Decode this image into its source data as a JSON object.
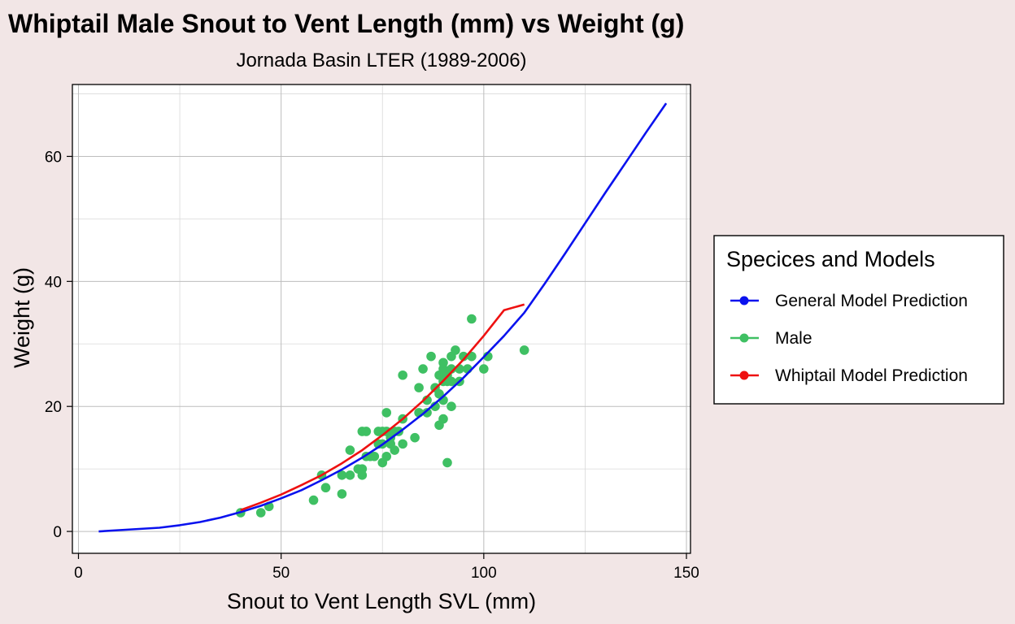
{
  "chart_data": {
    "type": "scatter",
    "title": "Whiptail Male Snout to Vent Length (mm) vs Weight (g)",
    "subtitle": "Jornada Basin LTER (1989-2006)",
    "xlabel": "Snout to Vent Length SVL (mm)",
    "ylabel": "Weight (g)",
    "xlim": [
      -1.5,
      151
    ],
    "ylim": [
      -3.5,
      71.5
    ],
    "xticks": [
      0,
      50,
      100,
      150
    ],
    "yticks": [
      0,
      20,
      40,
      60
    ],
    "grid": true,
    "legend": {
      "title": "Specices and Models",
      "placement": "right",
      "entries": [
        {
          "label": "General Model Prediction",
          "color": "#0a12ee"
        },
        {
          "label": "Male",
          "color": "#3fc063"
        },
        {
          "label": "Whiptail Model Prediction",
          "color": "#ee1111"
        }
      ]
    },
    "series": [
      {
        "name": "General Model Prediction",
        "kind": "line",
        "color": "#0a12ee",
        "points": [
          [
            5,
            0
          ],
          [
            10,
            0.2
          ],
          [
            15,
            0.4
          ],
          [
            20,
            0.6
          ],
          [
            25,
            1.0
          ],
          [
            30,
            1.5
          ],
          [
            35,
            2.2
          ],
          [
            40,
            3.1
          ],
          [
            45,
            4.1
          ],
          [
            50,
            5.3
          ],
          [
            55,
            6.6
          ],
          [
            60,
            8.2
          ],
          [
            65,
            9.9
          ],
          [
            70,
            11.8
          ],
          [
            75,
            13.9
          ],
          [
            80,
            16.3
          ],
          [
            85,
            18.8
          ],
          [
            90,
            21.6
          ],
          [
            95,
            24.6
          ],
          [
            100,
            27.9
          ],
          [
            105,
            31.3
          ],
          [
            110,
            35.0
          ],
          [
            115,
            39.6
          ],
          [
            120,
            44.4
          ],
          [
            125,
            49.3
          ],
          [
            130,
            54.2
          ],
          [
            135,
            59.0
          ],
          [
            140,
            63.8
          ],
          [
            145,
            68.5
          ]
        ]
      },
      {
        "name": "Male",
        "kind": "scatter",
        "color": "#3fc063",
        "points": [
          [
            40,
            3
          ],
          [
            45,
            3
          ],
          [
            47,
            4
          ],
          [
            58,
            5
          ],
          [
            60,
            9
          ],
          [
            61,
            7
          ],
          [
            65,
            9
          ],
          [
            65,
            6
          ],
          [
            67,
            13
          ],
          [
            67,
            9
          ],
          [
            69,
            10
          ],
          [
            70,
            10
          ],
          [
            70,
            9
          ],
          [
            70,
            16
          ],
          [
            71,
            16
          ],
          [
            71,
            12
          ],
          [
            72,
            12
          ],
          [
            73,
            12
          ],
          [
            74,
            14
          ],
          [
            74,
            16
          ],
          [
            75,
            11
          ],
          [
            75,
            14
          ],
          [
            75,
            16
          ],
          [
            76,
            12
          ],
          [
            76,
            16
          ],
          [
            76,
            19
          ],
          [
            77,
            15
          ],
          [
            77,
            14
          ],
          [
            78,
            13
          ],
          [
            78,
            16
          ],
          [
            79,
            16
          ],
          [
            80,
            18
          ],
          [
            80,
            14
          ],
          [
            80,
            25
          ],
          [
            83,
            15
          ],
          [
            84,
            19
          ],
          [
            84,
            23
          ],
          [
            85,
            26
          ],
          [
            86,
            21
          ],
          [
            86,
            19
          ],
          [
            87,
            28
          ],
          [
            88,
            23
          ],
          [
            88,
            20
          ],
          [
            89,
            17
          ],
          [
            89,
            25
          ],
          [
            89,
            22
          ],
          [
            90,
            18
          ],
          [
            90,
            21
          ],
          [
            90,
            26
          ],
          [
            90,
            24
          ],
          [
            90,
            27
          ],
          [
            91,
            11
          ],
          [
            91,
            24
          ],
          [
            91,
            25
          ],
          [
            92,
            20
          ],
          [
            92,
            24
          ],
          [
            92,
            28
          ],
          [
            92,
            26
          ],
          [
            93,
            29
          ],
          [
            94,
            26
          ],
          [
            94,
            24
          ],
          [
            95,
            28
          ],
          [
            96,
            26
          ],
          [
            97,
            28
          ],
          [
            97,
            34
          ],
          [
            100,
            26
          ],
          [
            101,
            28
          ],
          [
            110,
            29
          ]
        ]
      },
      {
        "name": "Whiptail Model Prediction",
        "kind": "line",
        "color": "#ee1111",
        "points": [
          [
            40,
            3.4
          ],
          [
            45,
            4.6
          ],
          [
            50,
            5.9
          ],
          [
            55,
            7.4
          ],
          [
            60,
            9.0
          ],
          [
            65,
            10.9
          ],
          [
            70,
            13.0
          ],
          [
            75,
            15.4
          ],
          [
            80,
            18.0
          ],
          [
            85,
            20.9
          ],
          [
            90,
            24.1
          ],
          [
            95,
            27.5
          ],
          [
            100,
            31.3
          ],
          [
            105,
            35.4
          ],
          [
            110,
            36.3
          ]
        ]
      }
    ]
  }
}
